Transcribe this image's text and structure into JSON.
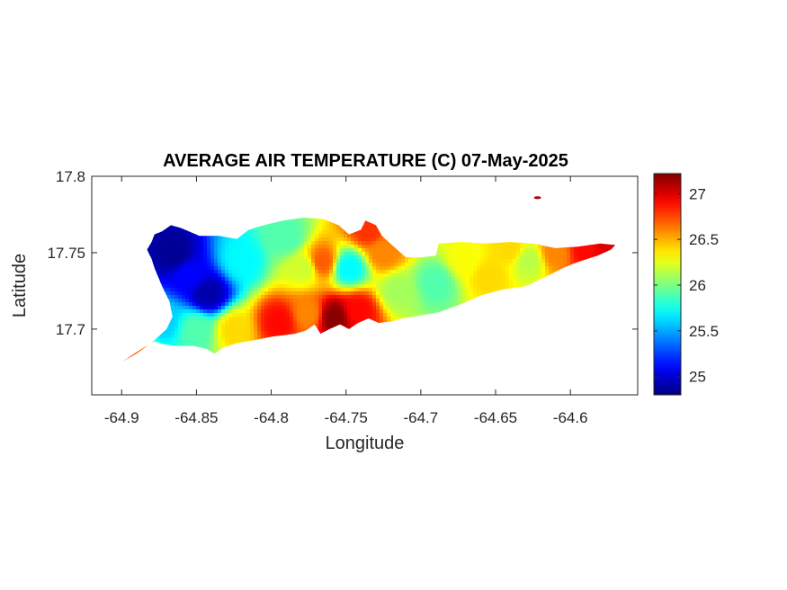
{
  "chart_data": {
    "type": "heatmap",
    "title": "AVERAGE AIR TEMPERATURE (C) 07-May-2025",
    "xlabel": "Longitude",
    "ylabel": "Latitude",
    "xlim": [
      -64.92,
      -64.555
    ],
    "ylim": [
      17.657,
      17.8
    ],
    "x_ticks": [
      -64.9,
      -64.85,
      -64.8,
      -64.75,
      -64.7,
      -64.65,
      -64.6
    ],
    "x_tick_labels": [
      "-64.9",
      "-64.85",
      "-64.8",
      "-64.75",
      "-64.7",
      "-64.65",
      "-64.6"
    ],
    "y_ticks": [
      17.7,
      17.75,
      17.8
    ],
    "y_tick_labels": [
      "17.7",
      "17.75",
      "17.8"
    ],
    "colorbar": {
      "colormap": "jet",
      "range": [
        24.8,
        27.22
      ],
      "ticks": [
        25,
        25.5,
        26,
        26.5,
        27
      ],
      "tick_labels": [
        "25",
        "25.5",
        "26",
        "26.5",
        "27"
      ]
    },
    "island_outline_lonlat": [
      [
        -64.899,
        17.679
      ],
      [
        -64.893,
        17.683
      ],
      [
        -64.885,
        17.688
      ],
      [
        -64.878,
        17.692
      ],
      [
        -64.872,
        17.69
      ],
      [
        -64.862,
        17.689
      ],
      [
        -64.852,
        17.689
      ],
      [
        -64.843,
        17.687
      ],
      [
        -64.838,
        17.684
      ],
      [
        -64.832,
        17.688
      ],
      [
        -64.822,
        17.691
      ],
      [
        -64.81,
        17.693
      ],
      [
        -64.8,
        17.695
      ],
      [
        -64.792,
        17.696
      ],
      [
        -64.784,
        17.697
      ],
      [
        -64.777,
        17.699
      ],
      [
        -64.771,
        17.703
      ],
      [
        -64.767,
        17.697
      ],
      [
        -64.761,
        17.7
      ],
      [
        -64.754,
        17.703
      ],
      [
        -64.748,
        17.7
      ],
      [
        -64.742,
        17.704
      ],
      [
        -64.735,
        17.707
      ],
      [
        -64.728,
        17.704
      ],
      [
        -64.72,
        17.705
      ],
      [
        -64.712,
        17.707
      ],
      [
        -64.7,
        17.709
      ],
      [
        -64.688,
        17.711
      ],
      [
        -64.674,
        17.716
      ],
      [
        -64.66,
        17.722
      ],
      [
        -64.645,
        17.726
      ],
      [
        -64.63,
        17.728
      ],
      [
        -64.615,
        17.735
      ],
      [
        -64.605,
        17.74
      ],
      [
        -64.595,
        17.744
      ],
      [
        -64.582,
        17.748
      ],
      [
        -64.573,
        17.752
      ],
      [
        -64.57,
        17.755
      ],
      [
        -64.58,
        17.756
      ],
      [
        -64.595,
        17.754
      ],
      [
        -64.61,
        17.753
      ],
      [
        -64.625,
        17.756
      ],
      [
        -64.64,
        17.757
      ],
      [
        -64.657,
        17.756
      ],
      [
        -64.673,
        17.757
      ],
      [
        -64.688,
        17.756
      ],
      [
        -64.69,
        17.748
      ],
      [
        -64.7,
        17.747
      ],
      [
        -64.71,
        17.747
      ],
      [
        -64.718,
        17.754
      ],
      [
        -64.726,
        17.761
      ],
      [
        -64.73,
        17.768
      ],
      [
        -64.737,
        17.771
      ],
      [
        -64.74,
        17.765
      ],
      [
        -64.748,
        17.762
      ],
      [
        -64.755,
        17.768
      ],
      [
        -64.765,
        17.772
      ],
      [
        -64.778,
        17.773
      ],
      [
        -64.792,
        17.771
      ],
      [
        -64.805,
        17.768
      ],
      [
        -64.815,
        17.765
      ],
      [
        -64.823,
        17.759
      ],
      [
        -64.835,
        17.761
      ],
      [
        -64.848,
        17.761
      ],
      [
        -64.86,
        17.766
      ],
      [
        -64.867,
        17.768
      ],
      [
        -64.873,
        17.764
      ],
      [
        -64.878,
        17.762
      ],
      [
        -64.88,
        17.757
      ],
      [
        -64.883,
        17.752
      ],
      [
        -64.88,
        17.746
      ],
      [
        -64.878,
        17.74
      ],
      [
        -64.873,
        17.728
      ],
      [
        -64.868,
        17.718
      ],
      [
        -64.866,
        17.708
      ],
      [
        -64.87,
        17.7
      ],
      [
        -64.88,
        17.691
      ],
      [
        -64.89,
        17.684
      ],
      [
        -64.899,
        17.679
      ]
    ],
    "islet_lonlat": [
      -64.622,
      17.786
    ],
    "temperature_field_anchors": [
      {
        "lon": -64.865,
        "lat": 17.749,
        "value": 24.85
      },
      {
        "lon": -64.842,
        "lat": 17.723,
        "value": 24.9
      },
      {
        "lon": -64.855,
        "lat": 17.735,
        "value": 25.1
      },
      {
        "lon": -64.872,
        "lat": 17.705,
        "value": 25.6
      },
      {
        "lon": -64.85,
        "lat": 17.7,
        "value": 25.9
      },
      {
        "lon": -64.825,
        "lat": 17.7,
        "value": 26.4
      },
      {
        "lon": -64.82,
        "lat": 17.745,
        "value": 25.7
      },
      {
        "lon": -64.795,
        "lat": 17.705,
        "value": 26.9
      },
      {
        "lon": -64.775,
        "lat": 17.71,
        "value": 26.6
      },
      {
        "lon": -64.758,
        "lat": 17.708,
        "value": 27.2
      },
      {
        "lon": -64.742,
        "lat": 17.712,
        "value": 26.9
      },
      {
        "lon": -64.778,
        "lat": 17.74,
        "value": 26.2
      },
      {
        "lon": -64.766,
        "lat": 17.744,
        "value": 26.7
      },
      {
        "lon": -64.748,
        "lat": 17.74,
        "value": 25.7
      },
      {
        "lon": -64.725,
        "lat": 17.75,
        "value": 26.6
      },
      {
        "lon": -64.735,
        "lat": 17.765,
        "value": 26.8
      },
      {
        "lon": -64.79,
        "lat": 17.76,
        "value": 25.9
      },
      {
        "lon": -64.715,
        "lat": 17.725,
        "value": 26.1
      },
      {
        "lon": -64.69,
        "lat": 17.73,
        "value": 25.9
      },
      {
        "lon": -64.67,
        "lat": 17.745,
        "value": 26.3
      },
      {
        "lon": -64.655,
        "lat": 17.735,
        "value": 26.4
      },
      {
        "lon": -64.628,
        "lat": 17.745,
        "value": 26.15
      },
      {
        "lon": -64.64,
        "lat": 17.752,
        "value": 26.4
      },
      {
        "lon": -64.61,
        "lat": 17.75,
        "value": 26.6
      },
      {
        "lon": -64.59,
        "lat": 17.752,
        "value": 26.9
      },
      {
        "lon": -64.575,
        "lat": 17.754,
        "value": 27.0
      },
      {
        "lon": -64.895,
        "lat": 17.682,
        "value": 26.7
      },
      {
        "lon": -64.622,
        "lat": 17.786,
        "value": 27.1
      }
    ]
  }
}
